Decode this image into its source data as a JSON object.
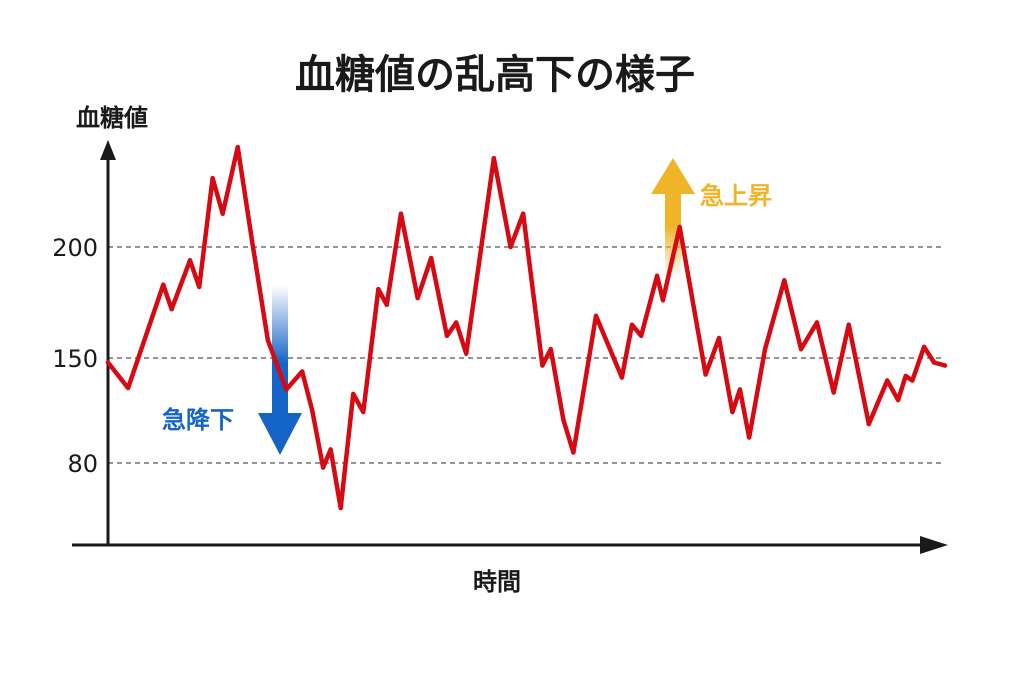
{
  "chart_data": {
    "type": "line",
    "title": "血糖値の乱高下の様子",
    "xlabel": "時間",
    "ylabel": "血糖値",
    "yticks": [
      80,
      150,
      200
    ],
    "grid": "dashed horizontal at ticks",
    "legend": "none",
    "x": [
      0,
      2.4,
      6.6,
      7.6,
      9.8,
      10.9,
      12.5,
      13.7,
      15.5,
      17.2,
      19.1,
      21.3,
      23.2,
      24.4,
      25.7,
      26.6,
      27.8,
      29.3,
      30.5,
      32.3,
      33.3,
      35.0,
      37.0,
      38.6,
      40.5,
      41.6,
      42.8,
      46.1,
      48.1,
      49.6,
      51.9,
      52.9,
      54.4,
      55.6,
      58.3,
      61.4,
      62.6,
      63.7,
      65.6,
      66.3,
      68.3,
      71.4,
      73.0,
      74.6,
      75.5,
      76.6,
      78.5,
      80.8,
      82.8,
      84.7,
      86.7,
      88.5,
      90.9,
      93.1,
      94.4,
      95.3,
      96.1,
      97.5,
      98.7,
      100
    ],
    "series": [
      {
        "values": [
          147,
          130,
          183,
          172,
          194,
          182,
          231,
          215,
          245,
          203,
          158,
          129,
          141,
          115,
          77,
          89,
          50,
          126,
          114,
          181,
          174,
          215,
          177,
          195,
          160,
          166,
          152,
          240,
          200,
          215,
          145,
          154,
          109,
          87,
          169,
          137,
          165,
          160,
          187,
          176,
          209,
          139,
          159,
          114,
          129,
          97,
          154,
          185,
          154,
          166,
          127,
          165,
          106,
          135,
          122,
          138,
          135,
          155,
          147,
          145
        ],
        "color": "#d60a12"
      }
    ],
    "annotations": [
      {
        "text": "急降下",
        "direction": "down",
        "color": "#1565c8"
      },
      {
        "text": "急上昇",
        "direction": "up",
        "color": "#f0b429"
      }
    ]
  }
}
